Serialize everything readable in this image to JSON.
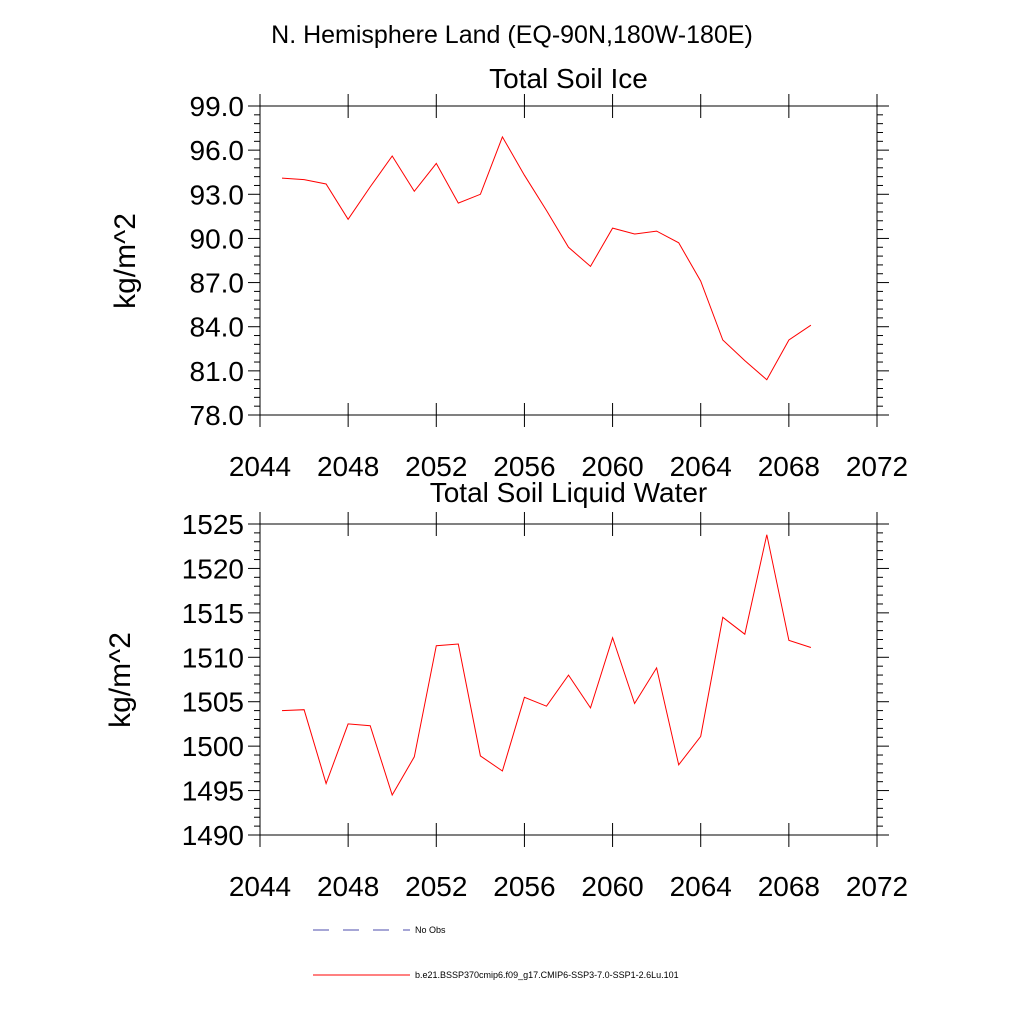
{
  "figure": {
    "title": "N. Hemisphere Land (EQ-90N,180W-180E)"
  },
  "chart_data": [
    {
      "type": "line",
      "title": "Total Soil Ice",
      "ylabel": "kg/m^2",
      "xlabel": "",
      "xlim": [
        2044,
        2072
      ],
      "ylim": [
        78,
        99
      ],
      "xticks": [
        2044,
        2048,
        2052,
        2056,
        2060,
        2064,
        2068,
        2072
      ],
      "xtick_labels": [
        "2044",
        "2048",
        "2052",
        "2056",
        "2060",
        "2064",
        "2068",
        "2072"
      ],
      "yticks": [
        78,
        81,
        84,
        87,
        90,
        93,
        96,
        99
      ],
      "ytick_labels": [
        "78.0",
        "81.0",
        "84.0",
        "87.0",
        "90.0",
        "93.0",
        "96.0",
        "99.0"
      ],
      "grid": false,
      "series": [
        {
          "name": "b.e21.BSSP370cmip6.f09_g17.CMIP6-SSP3-7.0-SSP1-2.6Lu.101",
          "color": "#ff0000",
          "x": [
            2045,
            2046,
            2047,
            2048,
            2049,
            2050,
            2051,
            2052,
            2053,
            2054,
            2055,
            2056,
            2057,
            2058,
            2059,
            2060,
            2061,
            2062,
            2063,
            2064,
            2065,
            2066,
            2067,
            2068,
            2069
          ],
          "y": [
            94.1,
            94.0,
            93.7,
            91.3,
            93.5,
            95.6,
            93.2,
            95.1,
            92.4,
            93.0,
            96.9,
            94.3,
            91.9,
            89.4,
            88.1,
            90.7,
            90.3,
            90.5,
            89.7,
            87.1,
            83.1,
            81.7,
            80.4,
            83.1,
            84.1
          ]
        }
      ]
    },
    {
      "type": "line",
      "title": "Total Soil Liquid Water",
      "ylabel": "kg/m^2",
      "xlabel": "",
      "xlim": [
        2044,
        2072
      ],
      "ylim": [
        1490,
        1525
      ],
      "xticks": [
        2044,
        2048,
        2052,
        2056,
        2060,
        2064,
        2068,
        2072
      ],
      "xtick_labels": [
        "2044",
        "2048",
        "2052",
        "2056",
        "2060",
        "2064",
        "2068",
        "2072"
      ],
      "yticks": [
        1490,
        1495,
        1500,
        1505,
        1510,
        1515,
        1520,
        1525
      ],
      "ytick_labels": [
        "1490",
        "1495",
        "1500",
        "1505",
        "1510",
        "1515",
        "1520",
        "1525"
      ],
      "grid": false,
      "series": [
        {
          "name": "b.e21.BSSP370cmip6.f09_g17.CMIP6-SSP3-7.0-SSP1-2.6Lu.101",
          "color": "#ff0000",
          "x": [
            2045,
            2046,
            2047,
            2048,
            2049,
            2050,
            2051,
            2052,
            2053,
            2054,
            2055,
            2056,
            2057,
            2058,
            2059,
            2060,
            2061,
            2062,
            2063,
            2064,
            2065,
            2066,
            2067,
            2068,
            2069
          ],
          "y": [
            1504.0,
            1504.1,
            1495.8,
            1502.5,
            1502.3,
            1494.5,
            1498.8,
            1511.3,
            1511.5,
            1498.9,
            1497.2,
            1505.5,
            1504.5,
            1508.0,
            1504.3,
            1512.2,
            1504.8,
            1508.8,
            1497.9,
            1501.1,
            1514.5,
            1512.6,
            1523.8,
            1511.9,
            1511.1
          ]
        }
      ]
    }
  ],
  "legend": {
    "items": [
      {
        "label": "No Obs",
        "style": "dashed",
        "color": "#4d4dad"
      },
      {
        "label": "b.e21.BSSP370cmip6.f09_g17.CMIP6-SSP3-7.0-SSP1-2.6Lu.101",
        "style": "solid",
        "color": "#ff0000"
      }
    ]
  }
}
